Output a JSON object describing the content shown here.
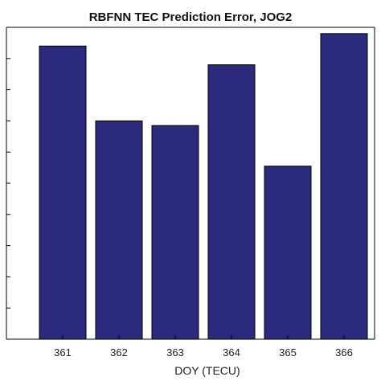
{
  "chart_data": {
    "type": "bar",
    "title": "RBFNN TEC Prediction Error, JOG2",
    "xlabel": "DOY (TECU)",
    "ylabel": "",
    "categories": [
      "361",
      "362",
      "363",
      "364",
      "365",
      "366"
    ],
    "values": [
      9.4,
      7.0,
      6.85,
      8.8,
      5.55,
      9.8
    ],
    "ylim": [
      0,
      10
    ],
    "y_ticks": [
      0,
      1,
      2,
      3,
      4,
      5,
      6,
      7,
      8,
      9,
      10
    ],
    "y_tick_labels_visible": false,
    "grid": false,
    "legend": "none",
    "colors": {
      "bar_fill": "#2c2a7c",
      "bar_edge": "#000000",
      "axis": "#000000",
      "background": "#ffffff"
    }
  }
}
